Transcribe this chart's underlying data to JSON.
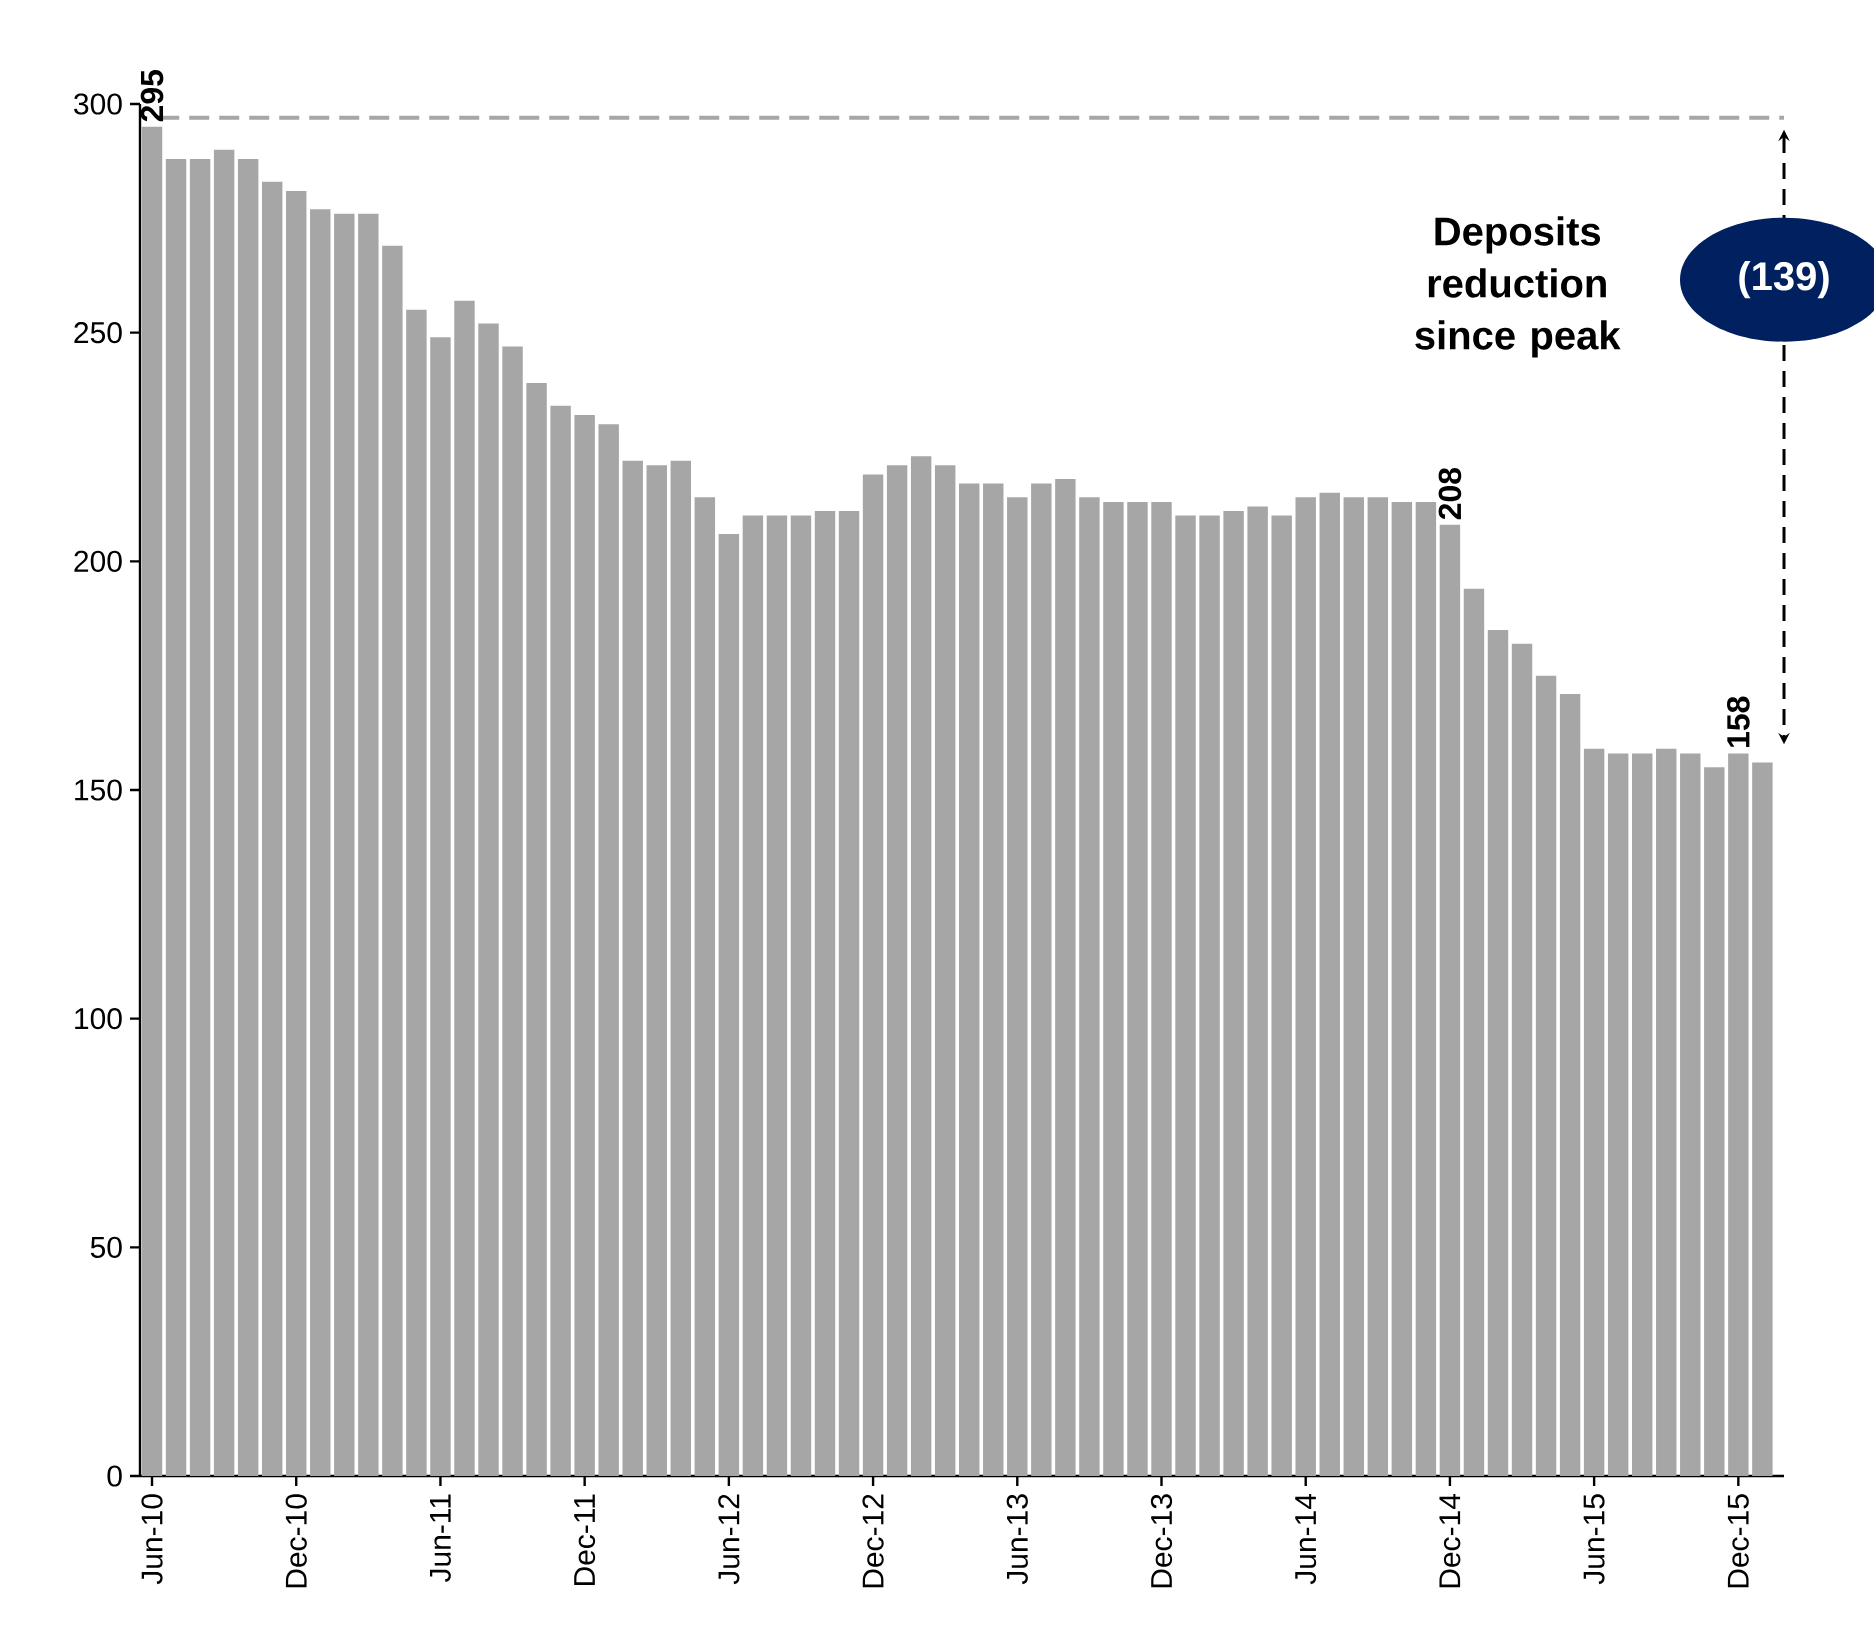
{
  "chart_data": {
    "type": "bar",
    "categories": [
      "Jun-10",
      null,
      null,
      null,
      null,
      null,
      "Dec-10",
      null,
      null,
      null,
      null,
      null,
      "Jun-11",
      null,
      null,
      null,
      null,
      null,
      "Dec-11",
      null,
      null,
      null,
      null,
      null,
      "Jun-12",
      null,
      null,
      null,
      null,
      null,
      "Dec-12",
      null,
      null,
      null,
      null,
      null,
      "Jun-13",
      null,
      null,
      null,
      null,
      null,
      "Dec-13",
      null,
      null,
      null,
      null,
      null,
      "Jun-14",
      null,
      null,
      null,
      null,
      null,
      "Dec-14",
      null,
      null,
      null,
      null,
      null,
      "Jun-15",
      null,
      null,
      null,
      null,
      null,
      "Dec-15",
      null
    ],
    "values": [
      295,
      288,
      288,
      290,
      288,
      283,
      281,
      277,
      276,
      276,
      269,
      255,
      249,
      257,
      252,
      247,
      239,
      234,
      232,
      230,
      222,
      221,
      222,
      214,
      206,
      210,
      210,
      210,
      211,
      211,
      219,
      221,
      223,
      221,
      217,
      217,
      214,
      217,
      218,
      214,
      213,
      213,
      213,
      210,
      210,
      211,
      212,
      210,
      214,
      215,
      214,
      214,
      213,
      213,
      208,
      194,
      185,
      182,
      175,
      171,
      159,
      158,
      158,
      159,
      158,
      155,
      158,
      156
    ],
    "value_labels": [
      "295",
      null,
      null,
      null,
      null,
      null,
      null,
      null,
      null,
      null,
      null,
      null,
      null,
      null,
      null,
      null,
      null,
      null,
      null,
      null,
      null,
      null,
      null,
      null,
      null,
      null,
      null,
      null,
      null,
      null,
      null,
      null,
      null,
      null,
      null,
      null,
      null,
      null,
      null,
      null,
      null,
      null,
      null,
      null,
      null,
      null,
      null,
      null,
      null,
      null,
      null,
      null,
      null,
      null,
      "208",
      null,
      null,
      null,
      null,
      null,
      null,
      null,
      null,
      null,
      null,
      null,
      "158",
      null
    ],
    "color": "#a6a6a6",
    "ylim": [
      0,
      300
    ],
    "yticks": [
      0,
      50,
      100,
      150,
      200,
      250,
      300
    ],
    "ref_lines": [
      {
        "axis": "y",
        "value": 297,
        "color": "#a6a6a6",
        "line_style": "dashed"
      }
    ],
    "annotations": [
      "Deposits reduction since peak",
      "(139)"
    ]
  }
}
